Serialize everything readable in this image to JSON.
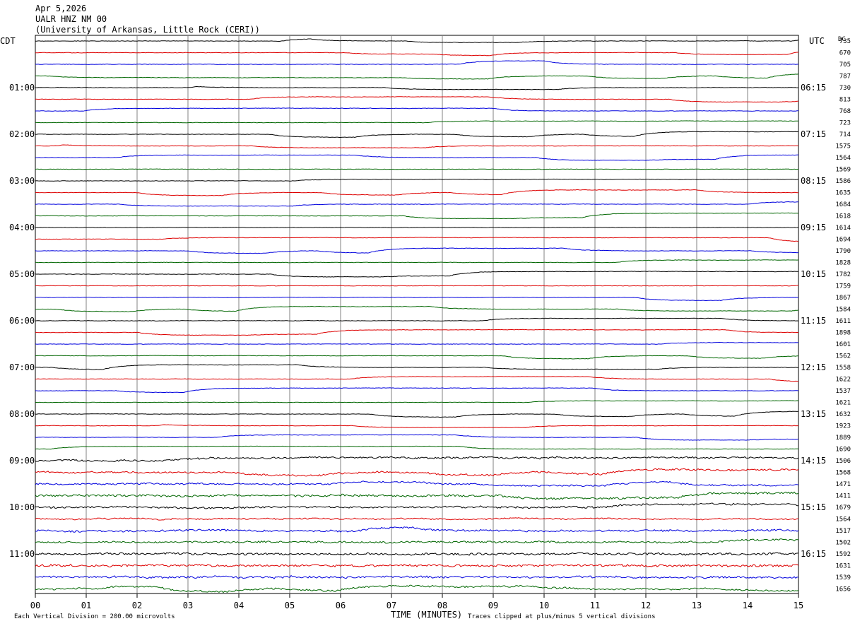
{
  "header": {
    "date": "Apr 5,2026",
    "station": "UALR HNZ NM 00",
    "institution": "(University of Arkansas, Little Rock (CERI))"
  },
  "left_tz": "CDT",
  "right_tz": "UTC",
  "dc_heading": "DC",
  "chart_data": {
    "type": "line",
    "title": "",
    "xlabel": "TIME (MINUTES)",
    "x_ticks": [
      "00",
      "01",
      "02",
      "03",
      "04",
      "05",
      "06",
      "07",
      "08",
      "09",
      "10",
      "11",
      "12",
      "13",
      "14",
      "15"
    ],
    "xlim": [
      0,
      15
    ],
    "grid": true,
    "trace_colors": [
      "#000000",
      "#dd0000",
      "#0000dd",
      "#006600"
    ],
    "left_hour_labels": [
      "01:00",
      "02:00",
      "03:00",
      "04:00",
      "05:00",
      "06:00",
      "07:00",
      "08:00",
      "09:00",
      "10:00",
      "11:00"
    ],
    "right_hour_labels": [
      "06:15",
      "07:15",
      "08:15",
      "09:15",
      "10:15",
      "11:15",
      "12:15",
      "13:15",
      "14:15",
      "15:15",
      "16:15"
    ],
    "dc_offsets": [
      735,
      670,
      705,
      787,
      730,
      813,
      768,
      723,
      714,
      1575,
      1564,
      1569,
      1586,
      1635,
      1684,
      1618,
      1614,
      1694,
      1790,
      1828,
      1782,
      1759,
      1867,
      1584,
      1611,
      1898,
      1601,
      1562,
      1558,
      1622,
      1537,
      1621,
      1632,
      1923,
      1889,
      1690,
      1506,
      1568,
      1471,
      1411,
      1679,
      1564,
      1517,
      1502,
      1592,
      1631,
      1539,
      1656
    ]
  },
  "footer": {
    "vertical_division": "Each Vertical Division =  200.00 microvolts",
    "clipping_note": "Traces clipped at plus/minus 5 vertical divisions"
  }
}
